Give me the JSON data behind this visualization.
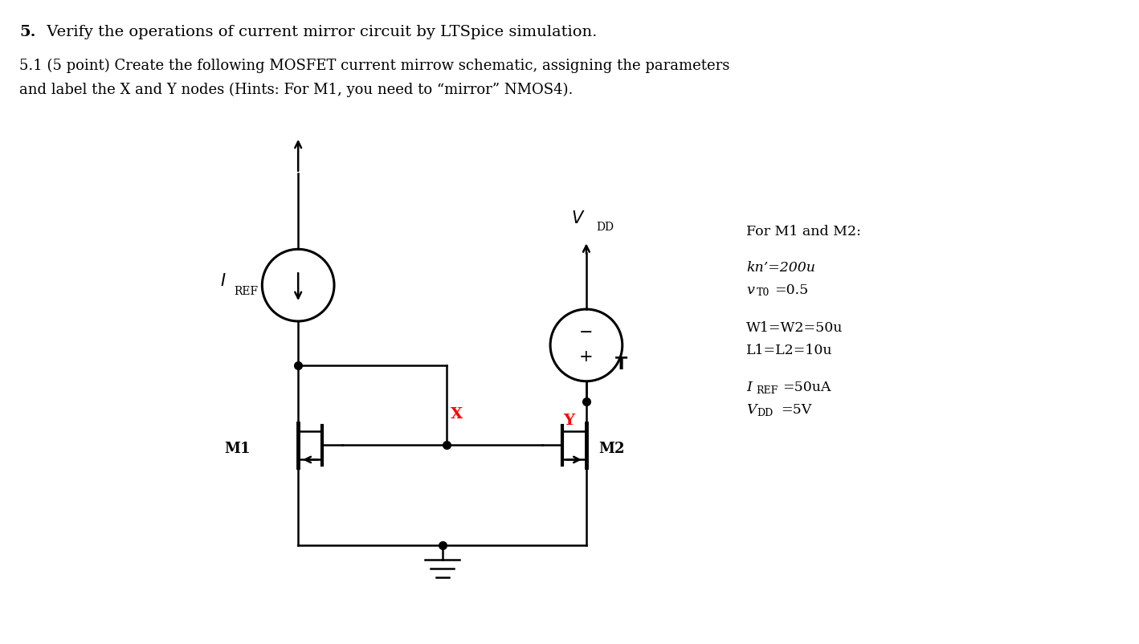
{
  "bg": "#ffffff",
  "lc": "#000000",
  "rc": "#ff0000",
  "title_bold": "5.",
  "title_rest": " Verify the operations of current mirror circuit by LTSpice simulation.",
  "sub1": "5.1 (5 point) Create the following MOSFET current mirrow schematic, assigning the parameters",
  "sub2": "and label the X and Y nodes (Hints: For M1, you need to “mirror” NMOS4).",
  "param_title": "For M1 and M2:",
  "p1a": "kn’=200u",
  "p1b": "",
  "p2a": "v",
  "p2b": "T0",
  "p2c": "=0.5",
  "p3a": "W1=W2=50u",
  "p4a": "L1=L2=10u",
  "p5a": "I",
  "p5b": "REF",
  "p5c": "=50uA",
  "p6a": "V",
  "p6b": "DD",
  "p6c": "=5V"
}
